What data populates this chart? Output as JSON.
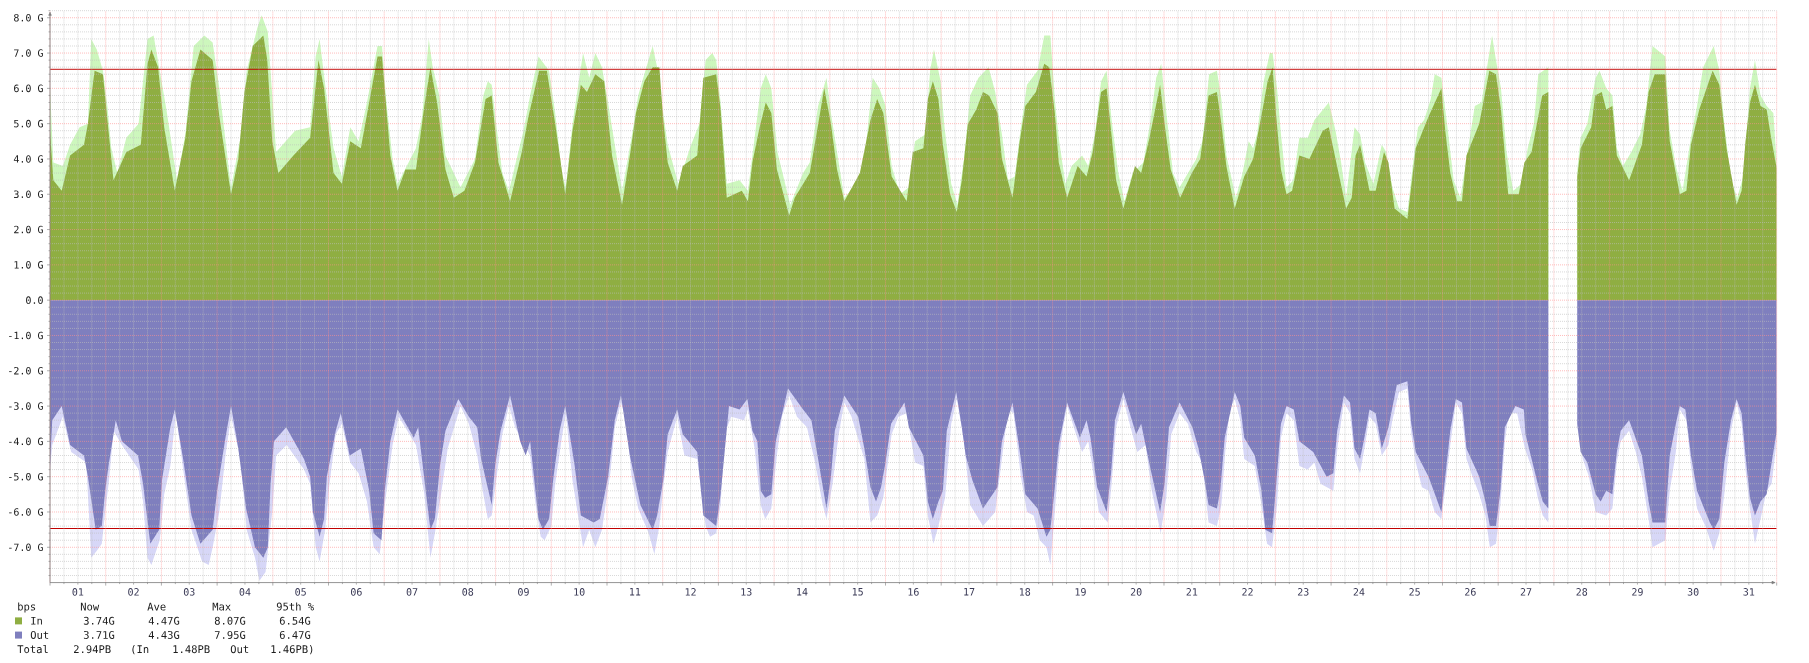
{
  "chart_data": {
    "type": "area",
    "xlim": [
      0,
      31
    ],
    "ylim": [
      -8,
      8.2
    ],
    "xticks": [
      {
        "value": 0,
        "label": null
      },
      {
        "value": 0.5,
        "label": "01"
      },
      {
        "value": 1,
        "label": null
      },
      {
        "value": 1.5,
        "label": "02"
      },
      {
        "value": 2,
        "label": null
      },
      {
        "value": 2.5,
        "label": "03"
      },
      {
        "value": 3,
        "label": null
      },
      {
        "value": 3.5,
        "label": "04"
      },
      {
        "value": 4,
        "label": null
      },
      {
        "value": 4.5,
        "label": "05"
      },
      {
        "value": 5,
        "label": null
      },
      {
        "value": 5.5,
        "label": "06"
      },
      {
        "value": 6,
        "label": null
      },
      {
        "value": 6.5,
        "label": "07"
      },
      {
        "value": 7,
        "label": null
      },
      {
        "value": 7.5,
        "label": "08"
      },
      {
        "value": 8,
        "label": null
      },
      {
        "value": 8.5,
        "label": "09"
      },
      {
        "value": 9,
        "label": null
      },
      {
        "value": 9.5,
        "label": "10"
      },
      {
        "value": 10,
        "label": null
      },
      {
        "value": 10.5,
        "label": "11"
      },
      {
        "value": 11,
        "label": null
      },
      {
        "value": 11.5,
        "label": "12"
      },
      {
        "value": 12,
        "label": null
      },
      {
        "value": 12.5,
        "label": "13"
      },
      {
        "value": 13,
        "label": null
      },
      {
        "value": 13.5,
        "label": "14"
      },
      {
        "value": 14,
        "label": null
      },
      {
        "value": 14.5,
        "label": "15"
      },
      {
        "value": 15,
        "label": null
      },
      {
        "value": 15.5,
        "label": "16"
      },
      {
        "value": 16,
        "label": null
      },
      {
        "value": 16.5,
        "label": "17"
      },
      {
        "value": 17,
        "label": null
      },
      {
        "value": 17.5,
        "label": "18"
      },
      {
        "value": 18,
        "label": null
      },
      {
        "value": 18.5,
        "label": "19"
      },
      {
        "value": 19,
        "label": null
      },
      {
        "value": 19.5,
        "label": "20"
      },
      {
        "value": 20,
        "label": null
      },
      {
        "value": 20.5,
        "label": "21"
      },
      {
        "value": 21,
        "label": null
      },
      {
        "value": 21.5,
        "label": "22"
      },
      {
        "value": 22,
        "label": null
      },
      {
        "value": 22.5,
        "label": "23"
      },
      {
        "value": 23,
        "label": null
      },
      {
        "value": 23.5,
        "label": "24"
      },
      {
        "value": 24,
        "label": null
      },
      {
        "value": 24.5,
        "label": "25"
      },
      {
        "value": 25,
        "label": null
      },
      {
        "value": 25.5,
        "label": "26"
      },
      {
        "value": 26,
        "label": null
      },
      {
        "value": 26.5,
        "label": "27"
      },
      {
        "value": 27,
        "label": null
      },
      {
        "value": 27.5,
        "label": "28"
      },
      {
        "value": 28,
        "label": null
      },
      {
        "value": 28.5,
        "label": "29"
      },
      {
        "value": 29,
        "label": null
      },
      {
        "value": 29.5,
        "label": "30"
      },
      {
        "value": 30,
        "label": null
      },
      {
        "value": 30.5,
        "label": "31"
      },
      {
        "value": 31,
        "label": null
      }
    ],
    "yticks": [
      {
        "value": -7,
        "label": "-7.0 G"
      },
      {
        "value": -6,
        "label": "-6.0 G"
      },
      {
        "value": -5,
        "label": "-5.0 G"
      },
      {
        "value": -4,
        "label": "-4.0 G"
      },
      {
        "value": -3,
        "label": "-3.0 G"
      },
      {
        "value": -2,
        "label": "-2.0 G"
      },
      {
        "value": -1,
        "label": "-1.0 G"
      },
      {
        "value": 0,
        "label": "0.0"
      },
      {
        "value": 1,
        "label": "1.0 G"
      },
      {
        "value": 2,
        "label": "2.0 G"
      },
      {
        "value": 3,
        "label": "3.0 G"
      },
      {
        "value": 4,
        "label": "4.0 G"
      },
      {
        "value": 5,
        "label": "5.0 G"
      },
      {
        "value": 6,
        "label": "6.0 G"
      },
      {
        "value": 7,
        "label": "7.0 G"
      },
      {
        "value": 8,
        "label": "8.0 G"
      }
    ],
    "grid": true,
    "legend": "bottom left",
    "legend_title": "bps",
    "annotations": [
      "Now",
      "Ave",
      "Max",
      "95th %",
      "3.74G",
      "4.47G",
      "8.07G",
      "6.54G",
      "3.71G",
      "4.43G",
      "7.95G",
      "6.47G",
      "Total",
      "2.94PB",
      "(In",
      "1.48PB",
      "Out",
      "1.46PB)"
    ],
    "ref_lines": [
      {
        "axis": "y",
        "value": 6.54,
        "color": "#c00000"
      },
      {
        "axis": "y",
        "value": -6.47,
        "color": "#c00000"
      }
    ],
    "series": [
      {
        "color": "#cdf7bd",
        "x": [
          0,
          0.06,
          0.23,
          0.36,
          0.53,
          0.68,
          0.74,
          0.84,
          0.95,
          1.03,
          1.1,
          1.21,
          1.37,
          1.59,
          1.75,
          1.86,
          1.97,
          2.09,
          2.28,
          2.43,
          2.58,
          2.77,
          2.92,
          3.04,
          3.25,
          3.42,
          3.53,
          3.72,
          3.8,
          3.91,
          3.99,
          4.06,
          4.4,
          4.67,
          4.77,
          4.84,
          4.94,
          5.09,
          5.24,
          5.39,
          5.54,
          5.69,
          5.88,
          5.96,
          6.04,
          6.15,
          6.24,
          6.57,
          6.68,
          6.8,
          6.87,
          6.99,
          7.1,
          7.37,
          7.63,
          7.78,
          7.86,
          7.93,
          8.01,
          8.12,
          8.24,
          8.5,
          8.62,
          8.77,
          8.96,
          9.07,
          9.19,
          9.26,
          9.38,
          9.57,
          9.68,
          9.79,
          9.91,
          10.02,
          10.09,
          10.27,
          10.44,
          10.56,
          10.67,
          10.82,
          10.9,
          11.0,
          11.09,
          11.28,
          11.51,
          11.66,
          11.77,
          11.89,
          11.96,
          12.04,
          12.15,
          12.38,
          12.53,
          12.65,
          12.76,
          12.85,
          12.95,
          13.06,
          13.29,
          13.52,
          13.64,
          13.79,
          13.94,
          14.02,
          14.13,
          14.26,
          14.43,
          14.62,
          14.77,
          14.89,
          15.0,
          15.11,
          15.26,
          15.42,
          15.53,
          15.72,
          15.8,
          15.87,
          15.99,
          16.06,
          16.18,
          16.29,
          16.41,
          16.52,
          16.67,
          16.85,
          16.97,
          17.09,
          17.2,
          17.32,
          17.43,
          17.54,
          17.73,
          17.85,
          17.96,
          18.04,
          18.11,
          18.23,
          18.34,
          18.53,
          18.64,
          18.76,
          18.87,
          18.97,
          19.06,
          19.18,
          19.29,
          19.44,
          19.63,
          19.75,
          19.86,
          19.95,
          20.05,
          20.16,
          20.28,
          20.58,
          20.69,
          20.81,
          20.95,
          21.03,
          21.12,
          21.29,
          21.41,
          21.52,
          21.6,
          21.67,
          21.79,
          21.9,
          21.95,
          22.03,
          22.1,
          22.2,
          22.32,
          22.43,
          22.58,
          22.7,
          22.96,
          23.08,
          23.18,
          23.27,
          23.42,
          23.52,
          23.61,
          23.76,
          23.91,
          23.99,
          24.1,
          24.22,
          24.37,
          24.48,
          24.56,
          24.67,
          24.79,
          24.86,
          24.98,
          25.09,
          25.2,
          25.32,
          25.47,
          25.58,
          25.7,
          25.77,
          25.89,
          25.96,
          26.05,
          26.15,
          26.27,
          26.42,
          26.53,
          26.64,
          26.72,
          26.9,
          27.15,
          27.42,
          27.48,
          27.6,
          27.75,
          27.82,
          27.94,
          28.05,
          28.13,
          28.24,
          28.39,
          28.55,
          28.66,
          28.77,
          29.0,
          29.08,
          29.19,
          29.31,
          29.46,
          29.57,
          29.68,
          29.87,
          29.97,
          30.06,
          30.18,
          30.29,
          30.4,
          30.52,
          30.61,
          30.71,
          30.82,
          30.94,
          31.0
        ],
        "values": [
          6.0,
          3.9,
          3.8,
          4.4,
          4.9,
          5.0,
          7.4,
          7.1,
          6.5,
          5.5,
          4.3,
          3.6,
          4.6,
          5.0,
          7.4,
          7.5,
          6.5,
          5.4,
          3.4,
          4.7,
          7.2,
          7.5,
          7.3,
          6.0,
          3.2,
          4.6,
          6.5,
          7.7,
          8.07,
          7.6,
          5.8,
          4.2,
          4.8,
          4.9,
          6.9,
          7.4,
          6.1,
          4.3,
          3.5,
          4.9,
          4.5,
          5.6,
          7.2,
          7.2,
          5.6,
          4.0,
          3.3,
          4.3,
          5.2,
          7.4,
          6.6,
          5.8,
          4.1,
          3.2,
          4.0,
          5.8,
          6.2,
          6.1,
          5.0,
          3.6,
          3.1,
          4.8,
          5.8,
          6.9,
          6.5,
          5.3,
          3.6,
          3.2,
          5.0,
          7.0,
          6.3,
          7.0,
          6.6,
          5.6,
          4.9,
          3.1,
          4.6,
          5.8,
          6.4,
          7.2,
          6.6,
          5.4,
          4.4,
          3.3,
          4.4,
          5.0,
          6.8,
          7.0,
          6.8,
          5.6,
          3.3,
          3.4,
          3.1,
          4.6,
          6.0,
          6.4,
          6.0,
          4.2,
          2.7,
          3.6,
          3.9,
          5.5,
          6.3,
          5.3,
          4.2,
          2.9,
          3.2,
          3.9,
          6.3,
          6.0,
          5.5,
          3.8,
          3.0,
          3.2,
          4.5,
          4.7,
          6.5,
          7.1,
          6.2,
          4.9,
          3.3,
          2.7,
          4.0,
          5.8,
          6.3,
          6.6,
          5.9,
          4.7,
          3.4,
          3.5,
          4.9,
          6.1,
          6.5,
          7.5,
          7.5,
          5.7,
          4.6,
          3.3,
          3.8,
          4.1,
          3.8,
          4.7,
          6.2,
          6.5,
          5.1,
          3.6,
          2.8,
          3.6,
          3.9,
          5.0,
          6.3,
          6.7,
          5.2,
          3.6,
          3.2,
          4.0,
          4.5,
          6.4,
          6.5,
          5.7,
          4.1,
          2.9,
          3.6,
          4.5,
          4.3,
          4.7,
          6.2,
          7.0,
          7.0,
          6.0,
          4.7,
          3.2,
          3.4,
          4.6,
          4.6,
          5.1,
          5.6,
          4.8,
          3.9,
          2.9,
          4.9,
          4.7,
          3.9,
          3.3,
          4.4,
          4.2,
          3.2,
          2.6,
          2.5,
          4.0,
          4.9,
          5.1,
          5.7,
          6.4,
          6.3,
          4.9,
          3.4,
          2.9,
          4.4,
          5.5,
          5.6,
          6.3,
          7.5,
          6.8,
          6.0,
          4.2,
          3.1,
          3.3,
          4.3,
          5.0,
          6.4,
          6.6,
          null,
          3.7,
          4.6,
          5.0,
          6.3,
          6.5,
          6.0,
          5.8,
          4.3,
          3.8,
          4.2,
          4.7,
          5.5,
          7.2,
          6.9,
          4.8,
          3.8,
          3.1,
          4.6,
          5.5,
          6.6,
          7.2,
          6.5,
          5.0,
          3.4,
          2.9,
          3.5,
          6.0,
          6.8,
          5.8,
          5.5,
          5.3,
          3.9
        ]
      },
      {
        "color": "#d7d7f7",
        "x": [
          0,
          0.04,
          0.23,
          0.38,
          0.65,
          0.74,
          0.84,
          0.93,
          0.99,
          1.06,
          1.14,
          1.29,
          1.59,
          1.67,
          1.75,
          1.82,
          1.97,
          2.05,
          2.16,
          2.26,
          2.39,
          2.54,
          2.73,
          2.85,
          2.92,
          3.04,
          3.15,
          3.25,
          3.42,
          3.53,
          3.68,
          3.76,
          3.87,
          3.99,
          4.06,
          4.25,
          4.56,
          4.67,
          4.77,
          4.84,
          4.94,
          5.01,
          5.13,
          5.24,
          5.39,
          5.54,
          5.69,
          5.81,
          5.92,
          6.01,
          6.15,
          6.26,
          6.57,
          6.72,
          6.83,
          6.91,
          7.02,
          7.14,
          7.37,
          7.52,
          7.67,
          7.78,
          7.86,
          7.93,
          8.01,
          8.12,
          8.24,
          8.35,
          8.62,
          8.72,
          8.81,
          8.88,
          9.0,
          9.07,
          9.19,
          9.26,
          9.38,
          9.57,
          9.68,
          9.79,
          9.91,
          10.02,
          10.06,
          10.14,
          10.25,
          10.35,
          10.44,
          10.56,
          10.75,
          10.85,
          10.94,
          11.01,
          11.09,
          11.26,
          11.39,
          11.62,
          11.77,
          11.85,
          11.96,
          12.04,
          12.11,
          12.23,
          12.46,
          12.53,
          12.65,
          12.76,
          12.84,
          12.95,
          13.05,
          13.14,
          13.27,
          13.41,
          13.59,
          13.75,
          13.86,
          13.94,
          14.05,
          14.16,
          14.26,
          14.39,
          14.62,
          14.73,
          14.85,
          14.96,
          15.11,
          15.23,
          15.38,
          15.53,
          15.68,
          15.76,
          15.86,
          15.95,
          16.07,
          16.18,
          16.28,
          16.41,
          16.52,
          16.75,
          16.97,
          17.09,
          17.2,
          17.3,
          17.43,
          17.54,
          17.66,
          17.77,
          17.89,
          17.96,
          18.04,
          18.11,
          18.19,
          18.26,
          18.42,
          18.53,
          18.64,
          18.72,
          18.83,
          18.99,
          19.06,
          19.14,
          19.27,
          19.4,
          19.52,
          19.67,
          19.78,
          19.86,
          19.94,
          20.04,
          20.13,
          20.28,
          20.43,
          20.58,
          20.69,
          20.8,
          20.95,
          21.03,
          21.1,
          21.18,
          21.27,
          21.37,
          21.44,
          21.63,
          21.75,
          21.85,
          21.94,
          22.03,
          22.1,
          22.2,
          22.33,
          22.43,
          22.58,
          22.7,
          22.81,
          23.04,
          23.12,
          23.23,
          23.34,
          23.42,
          23.52,
          23.61,
          23.69,
          23.8,
          23.91,
          24.03,
          24.1,
          24.22,
          24.37,
          24.44,
          24.52,
          24.63,
          24.75,
          24.86,
          24.98,
          25.05,
          25.14,
          25.24,
          25.35,
          25.43,
          25.54,
          25.66,
          25.77,
          25.85,
          25.96,
          26.04,
          26.12,
          26.19,
          26.34,
          26.48,
          26.61,
          26.71,
          26.8,
          26.9,
          27.15,
          27.42,
          27.52,
          27.63,
          27.75,
          27.94,
          28.05,
          28.13,
          28.2,
          28.35,
          28.47,
          28.58,
          28.7,
          28.77,
          29.0,
          29.08,
          29.19,
          29.26,
          29.38,
          29.46,
          29.57,
          29.72,
          29.87,
          29.97,
          30.06,
          30.18,
          30.28,
          30.37,
          30.44,
          30.52,
          30.61,
          30.71,
          30.82,
          30.91,
          31.0
        ],
        "values": [
          -4.8,
          -4.1,
          -3.3,
          -4.3,
          -4.6,
          -7.3,
          -7.1,
          -6.9,
          -6.0,
          -5.1,
          -3.7,
          -4.1,
          -4.8,
          -5.7,
          -7.3,
          -7.5,
          -6.8,
          -5.5,
          -4.7,
          -3.2,
          -4.8,
          -6.5,
          -7.4,
          -7.5,
          -7.0,
          -6.0,
          -4.4,
          -3.3,
          -4.5,
          -6.5,
          -7.3,
          -7.95,
          -7.7,
          -6.0,
          -4.4,
          -4.1,
          -4.8,
          -5.2,
          -7.0,
          -7.4,
          -6.5,
          -5.3,
          -3.8,
          -3.5,
          -4.6,
          -4.9,
          -5.7,
          -7.0,
          -7.2,
          -5.8,
          -4.1,
          -3.3,
          -4.1,
          -5.5,
          -7.3,
          -6.6,
          -5.5,
          -4.2,
          -3.0,
          -3.5,
          -4.4,
          -5.5,
          -6.2,
          -6.1,
          -5.1,
          -3.8,
          -3.0,
          -3.6,
          -4.4,
          -5.8,
          -6.7,
          -6.8,
          -6.4,
          -5.2,
          -3.9,
          -3.2,
          -5.1,
          -7.0,
          -6.5,
          -7.0,
          -6.5,
          -5.3,
          -4.9,
          -3.6,
          -2.9,
          -3.4,
          -5.0,
          -5.9,
          -6.6,
          -7.2,
          -6.4,
          -5.3,
          -4.3,
          -3.3,
          -4.4,
          -4.5,
          -6.4,
          -6.7,
          -6.6,
          -5.8,
          -3.8,
          -3.3,
          -3.4,
          -3.1,
          -4.2,
          -5.8,
          -6.2,
          -5.9,
          -4.4,
          -3.3,
          -2.7,
          -3.3,
          -3.6,
          -4.7,
          -5.7,
          -6.2,
          -5.2,
          -3.8,
          -2.9,
          -3.3,
          -4.5,
          -6.3,
          -6.1,
          -5.6,
          -3.8,
          -3.3,
          -3.2,
          -4.6,
          -4.7,
          -6.1,
          -6.9,
          -6.4,
          -5.6,
          -3.5,
          -2.8,
          -4.0,
          -5.8,
          -6.4,
          -6.0,
          -4.5,
          -3.1,
          -3.2,
          -5.0,
          -6.0,
          -6.1,
          -6.8,
          -7.0,
          -7.5,
          -6.0,
          -4.5,
          -3.6,
          -3.0,
          -3.8,
          -4.3,
          -4.0,
          -4.8,
          -6.0,
          -6.3,
          -5.2,
          -3.6,
          -2.8,
          -3.6,
          -4.3,
          -4.1,
          -5.4,
          -6.0,
          -6.6,
          -5.6,
          -3.8,
          -3.2,
          -3.5,
          -4.3,
          -4.6,
          -6.3,
          -6.4,
          -5.8,
          -4.3,
          -3.1,
          -2.8,
          -3.4,
          -4.5,
          -4.7,
          -5.8,
          -6.9,
          -7.0,
          -5.8,
          -3.9,
          -3.2,
          -3.4,
          -4.7,
          -4.8,
          -4.6,
          -5.2,
          -5.4,
          -4.1,
          -2.9,
          -3.2,
          -4.5,
          -4.9,
          -4.1,
          -3.3,
          -3.5,
          -4.4,
          -4.1,
          -3.4,
          -2.6,
          -2.5,
          -3.8,
          -4.6,
          -5.3,
          -5.4,
          -6.0,
          -6.2,
          -5.3,
          -4.1,
          -2.9,
          -3.2,
          -4.5,
          -5.0,
          -5.5,
          -6.1,
          -7.0,
          -6.9,
          -5.8,
          -4.0,
          -3.2,
          -3.2,
          -4.2,
          -4.8,
          -5.6,
          -6.1,
          -6.3,
          null,
          -3.6,
          -4.5,
          -5.0,
          -6.0,
          -6.1,
          -5.9,
          -4.6,
          -4.0,
          -3.7,
          -4.3,
          -5.0,
          -6.2,
          -7.0,
          -6.8,
          -5.4,
          -4.3,
          -3.1,
          -3.4,
          -4.7,
          -5.9,
          -6.4,
          -7.1,
          -6.6,
          -5.5,
          -3.7,
          -2.9,
          -3.5,
          -4.8,
          -5.9,
          -6.9,
          -6.2,
          -5.4,
          -5.2,
          -4.0
        ]
      },
      {
        "name": "In",
        "color": "#8fae42",
        "x": [
          0,
          0.06,
          0.21,
          0.36,
          0.61,
          0.68,
          0.8,
          0.95,
          1.05,
          1.14,
          1.37,
          1.63,
          1.75,
          1.82,
          1.94,
          2.05,
          2.24,
          2.43,
          2.54,
          2.7,
          2.92,
          3.04,
          3.25,
          3.38,
          3.49,
          3.64,
          3.83,
          3.9,
          3.99,
          4.1,
          4.37,
          4.67,
          4.82,
          4.92,
          5.09,
          5.24,
          5.39,
          5.58,
          5.73,
          5.88,
          5.96,
          6.11,
          6.24,
          6.38,
          6.57,
          6.72,
          6.83,
          6.95,
          7.1,
          7.25,
          7.44,
          7.63,
          7.82,
          7.93,
          8.05,
          8.26,
          8.47,
          8.59,
          8.78,
          8.92,
          9.07,
          9.25,
          9.38,
          9.53,
          9.64,
          9.79,
          9.95,
          10.09,
          10.27,
          10.42,
          10.52,
          10.67,
          10.82,
          10.94,
          11.01,
          11.09,
          11.26,
          11.36,
          11.62,
          11.73,
          11.96,
          12.04,
          12.15,
          12.42,
          12.53,
          12.61,
          12.74,
          12.85,
          12.95,
          13.05,
          13.27,
          13.37,
          13.64,
          13.75,
          13.9,
          14.02,
          14.13,
          14.26,
          14.54,
          14.73,
          14.85,
          14.96,
          15.11,
          15.38,
          15.49,
          15.68,
          15.76,
          15.85,
          15.95,
          16.03,
          16.16,
          16.28,
          16.37,
          16.48,
          16.63,
          16.75,
          16.86,
          17.01,
          17.09,
          17.28,
          17.41,
          17.51,
          17.7,
          17.85,
          17.94,
          18.04,
          18.11,
          18.26,
          18.45,
          18.61,
          18.72,
          18.87,
          18.97,
          19.05,
          19.14,
          19.27,
          19.48,
          19.59,
          19.74,
          19.93,
          20.01,
          20.12,
          20.29,
          20.5,
          20.65,
          20.8,
          20.95,
          21.03,
          21.12,
          21.27,
          21.44,
          21.6,
          21.77,
          21.86,
          21.95,
          22.01,
          22.1,
          22.2,
          22.3,
          22.43,
          22.61,
          22.85,
          22.96,
          23.08,
          23.27,
          23.37,
          23.44,
          23.52,
          23.69,
          23.8,
          23.95,
          24.03,
          24.14,
          24.37,
          24.52,
          24.75,
          24.98,
          25.05,
          25.14,
          25.26,
          25.35,
          25.43,
          25.66,
          25.84,
          25.96,
          26.05,
          26.18,
          26.37,
          26.47,
          26.6,
          26.79,
          26.9,
          27.15,
          27.42,
          27.48,
          27.67,
          27.74,
          27.86,
          27.94,
          28.05,
          28.13,
          28.35,
          28.58,
          28.7,
          28.81,
          29.0,
          29.08,
          29.26,
          29.38,
          29.46,
          29.61,
          29.85,
          29.97,
          30.1,
          30.28,
          30.37,
          30.44,
          30.52,
          30.61,
          30.71,
          30.82,
          30.9,
          31.0
        ],
        "values": [
          4.8,
          3.4,
          3.1,
          4.1,
          4.4,
          5.0,
          6.5,
          6.4,
          4.8,
          3.4,
          4.2,
          4.4,
          6.7,
          7.1,
          6.6,
          4.9,
          3.1,
          4.6,
          6.2,
          7.1,
          6.8,
          5.2,
          3.0,
          4.0,
          5.9,
          7.2,
          7.5,
          6.8,
          4.5,
          3.6,
          4.1,
          4.6,
          6.8,
          6.0,
          3.6,
          3.3,
          4.5,
          4.3,
          5.6,
          6.9,
          6.9,
          4.1,
          3.1,
          3.7,
          3.7,
          5.5,
          6.6,
          5.6,
          3.7,
          2.9,
          3.1,
          3.9,
          5.7,
          5.8,
          3.9,
          2.8,
          4.2,
          5.2,
          6.5,
          6.5,
          5.0,
          3.0,
          4.8,
          6.1,
          5.9,
          6.4,
          6.2,
          4.1,
          2.7,
          4.2,
          5.3,
          6.2,
          6.6,
          6.6,
          5.1,
          3.9,
          3.1,
          3.8,
          4.1,
          6.3,
          6.4,
          5.4,
          2.9,
          3.1,
          2.8,
          3.9,
          4.9,
          5.6,
          5.3,
          3.7,
          2.4,
          2.9,
          3.6,
          4.6,
          6.0,
          5.0,
          3.7,
          2.8,
          3.6,
          5.1,
          5.7,
          5.3,
          3.5,
          2.8,
          4.2,
          4.3,
          5.7,
          6.2,
          5.7,
          4.4,
          3.0,
          2.5,
          3.4,
          5.0,
          5.4,
          5.9,
          5.8,
          5.3,
          4.0,
          2.9,
          4.5,
          5.5,
          5.9,
          6.7,
          6.6,
          5.3,
          3.9,
          2.9,
          3.8,
          3.5,
          4.2,
          5.9,
          6.0,
          4.8,
          3.4,
          2.6,
          3.8,
          3.6,
          4.6,
          6.1,
          5.0,
          3.7,
          2.9,
          3.6,
          4.0,
          5.8,
          5.9,
          5.0,
          3.8,
          2.6,
          3.5,
          4.0,
          5.4,
          6.2,
          6.6,
          5.3,
          3.7,
          3.0,
          3.1,
          4.1,
          4.0,
          4.8,
          4.9,
          4.0,
          2.6,
          2.9,
          4.1,
          4.4,
          3.1,
          3.1,
          4.2,
          3.9,
          2.6,
          2.3,
          4.3,
          5.2,
          6.0,
          4.8,
          3.6,
          2.8,
          2.8,
          4.1,
          5.0,
          6.5,
          6.4,
          5.4,
          3.0,
          3.0,
          3.9,
          4.2,
          5.8,
          5.9,
          null,
          3.5,
          4.3,
          4.9,
          5.8,
          5.9,
          5.4,
          5.5,
          4.1,
          3.4,
          4.4,
          5.9,
          6.4,
          6.4,
          4.5,
          3.0,
          3.1,
          4.4,
          5.4,
          6.5,
          6.1,
          4.3,
          2.7,
          3.1,
          4.5,
          5.6,
          6.1,
          5.5,
          5.4,
          4.6,
          3.74
        ]
      },
      {
        "name": "Out",
        "color": "#7f7fbe",
        "x": [
          0,
          0.04,
          0.21,
          0.36,
          0.61,
          0.68,
          0.82,
          0.93,
          0.99,
          1.05,
          1.18,
          1.29,
          1.58,
          1.67,
          1.8,
          1.96,
          2.01,
          2.16,
          2.24,
          2.39,
          2.54,
          2.7,
          2.92,
          3.0,
          3.15,
          3.25,
          3.38,
          3.52,
          3.68,
          3.83,
          3.91,
          3.96,
          4.02,
          4.24,
          4.56,
          4.67,
          4.72,
          4.84,
          4.92,
          4.97,
          5.13,
          5.22,
          5.38,
          5.58,
          5.73,
          5.81,
          5.95,
          6.01,
          6.11,
          6.24,
          6.53,
          6.61,
          6.76,
          6.83,
          6.91,
          7.0,
          7.1,
          7.33,
          7.52,
          7.67,
          7.74,
          7.93,
          7.99,
          8.09,
          8.26,
          8.44,
          8.54,
          8.62,
          8.77,
          8.85,
          8.96,
          9.04,
          9.15,
          9.25,
          9.42,
          9.53,
          9.76,
          9.87,
          10.02,
          10.14,
          10.25,
          10.41,
          10.6,
          10.82,
          10.9,
          11.01,
          11.09,
          11.26,
          11.36,
          11.62,
          11.73,
          11.96,
          12.04,
          12.19,
          12.38,
          12.52,
          12.61,
          12.7,
          12.76,
          12.84,
          12.95,
          13.03,
          13.25,
          13.52,
          13.67,
          13.79,
          13.94,
          14.02,
          14.09,
          14.26,
          14.51,
          14.62,
          14.73,
          14.83,
          14.92,
          15.0,
          15.1,
          15.34,
          15.42,
          15.68,
          15.76,
          15.85,
          15.95,
          16.03,
          16.1,
          16.27,
          16.37,
          16.44,
          16.56,
          16.75,
          17.01,
          17.09,
          17.28,
          17.43,
          17.51,
          17.73,
          17.89,
          17.96,
          18.04,
          18.11,
          18.26,
          18.49,
          18.61,
          18.68,
          18.8,
          18.97,
          19.05,
          19.12,
          19.27,
          19.5,
          19.59,
          19.76,
          19.93,
          20.01,
          20.09,
          20.28,
          20.51,
          20.62,
          20.73,
          20.8,
          20.95,
          21.01,
          21.09,
          21.27,
          21.37,
          21.44,
          21.63,
          21.75,
          21.82,
          21.94,
          22.01,
          22.1,
          22.2,
          22.33,
          22.43,
          22.68,
          22.92,
          23.04,
          23.11,
          23.23,
          23.34,
          23.42,
          23.52,
          23.61,
          23.69,
          23.8,
          23.91,
          24.03,
          24.18,
          24.37,
          24.44,
          24.52,
          24.75,
          24.98,
          25.05,
          25.14,
          25.24,
          25.35,
          25.43,
          25.66,
          25.77,
          25.85,
          25.96,
          26.04,
          26.12,
          26.31,
          26.46,
          26.49,
          26.71,
          26.8,
          26.9,
          27.15,
          27.42,
          27.48,
          27.6,
          27.75,
          27.84,
          27.94,
          28.05,
          28.13,
          28.2,
          28.35,
          28.58,
          28.7,
          28.77,
          29.0,
          29.08,
          29.19,
          29.26,
          29.36,
          29.46,
          29.57,
          29.8,
          29.87,
          29.97,
          30.06,
          30.18,
          30.28,
          30.37,
          30.44,
          30.52,
          30.61,
          30.71,
          30.82,
          30.91,
          31.0
        ],
        "values": [
          -4.7,
          -3.4,
          -3.0,
          -4.1,
          -4.4,
          -5.0,
          -6.5,
          -6.4,
          -5.4,
          -4.7,
          -3.4,
          -4.0,
          -4.4,
          -5.2,
          -6.9,
          -6.5,
          -5.1,
          -3.6,
          -3.1,
          -4.5,
          -6.1,
          -6.9,
          -6.5,
          -5.4,
          -3.9,
          -3.0,
          -4.2,
          -5.9,
          -7.0,
          -7.3,
          -7.0,
          -5.2,
          -4.0,
          -3.6,
          -4.5,
          -5.0,
          -6.0,
          -6.7,
          -6.2,
          -5.0,
          -3.7,
          -3.2,
          -4.4,
          -4.2,
          -5.4,
          -6.6,
          -6.8,
          -5.4,
          -4.0,
          -3.1,
          -3.9,
          -3.6,
          -5.6,
          -6.5,
          -6.2,
          -4.7,
          -3.7,
          -2.8,
          -3.3,
          -3.6,
          -4.5,
          -5.8,
          -4.7,
          -3.7,
          -2.7,
          -4.0,
          -4.4,
          -4.0,
          -6.2,
          -6.5,
          -6.2,
          -5.0,
          -3.7,
          -3.0,
          -4.7,
          -6.1,
          -6.3,
          -6.2,
          -5.0,
          -3.4,
          -2.7,
          -4.4,
          -5.8,
          -6.5,
          -6.1,
          -5.1,
          -3.8,
          -3.1,
          -3.8,
          -4.3,
          -6.1,
          -6.4,
          -5.5,
          -3.0,
          -3.1,
          -2.8,
          -3.7,
          -4.0,
          -5.4,
          -5.6,
          -5.5,
          -4.0,
          -2.5,
          -3.1,
          -3.4,
          -4.5,
          -5.9,
          -5.0,
          -3.7,
          -2.7,
          -3.3,
          -4.2,
          -5.3,
          -5.7,
          -5.3,
          -4.6,
          -3.5,
          -2.9,
          -3.6,
          -4.4,
          -5.7,
          -6.2,
          -5.7,
          -5.4,
          -3.7,
          -2.6,
          -3.6,
          -4.4,
          -5.1,
          -5.9,
          -5.3,
          -4.0,
          -2.9,
          -4.5,
          -5.5,
          -5.9,
          -6.7,
          -6.5,
          -5.3,
          -4.1,
          -2.9,
          -3.9,
          -3.4,
          -3.9,
          -5.3,
          -6.0,
          -4.9,
          -3.4,
          -2.6,
          -3.8,
          -3.5,
          -4.8,
          -6.0,
          -5.2,
          -3.6,
          -2.9,
          -3.6,
          -4.2,
          -5.1,
          -5.8,
          -5.9,
          -5.4,
          -3.9,
          -2.6,
          -3.0,
          -3.9,
          -4.4,
          -5.4,
          -6.5,
          -6.6,
          -5.3,
          -3.5,
          -3.0,
          -3.1,
          -4.0,
          -4.3,
          -5.0,
          -4.9,
          -3.7,
          -2.7,
          -2.9,
          -4.2,
          -4.5,
          -3.8,
          -3.1,
          -3.2,
          -4.2,
          -3.6,
          -2.4,
          -2.3,
          -3.5,
          -4.3,
          -5.0,
          -6.0,
          -5.0,
          -3.7,
          -2.8,
          -2.9,
          -4.2,
          -5.0,
          -5.7,
          -6.4,
          -6.4,
          -5.4,
          -3.6,
          -3.0,
          -3.1,
          -3.8,
          -5.2,
          -5.7,
          -5.9,
          null,
          -3.5,
          -4.3,
          -4.6,
          -5.5,
          -5.7,
          -5.4,
          -5.5,
          -4.3,
          -3.7,
          -3.4,
          -4.4,
          -5.7,
          -6.3,
          -6.3,
          -4.4,
          -3.5,
          -3.0,
          -3.1,
          -4.4,
          -5.4,
          -6.3,
          -6.5,
          -6.2,
          -4.6,
          -3.4,
          -2.8,
          -3.2,
          -4.4,
          -5.6,
          -6.1,
          -5.7,
          -5.5,
          -4.6,
          -3.71
        ]
      }
    ]
  }
}
